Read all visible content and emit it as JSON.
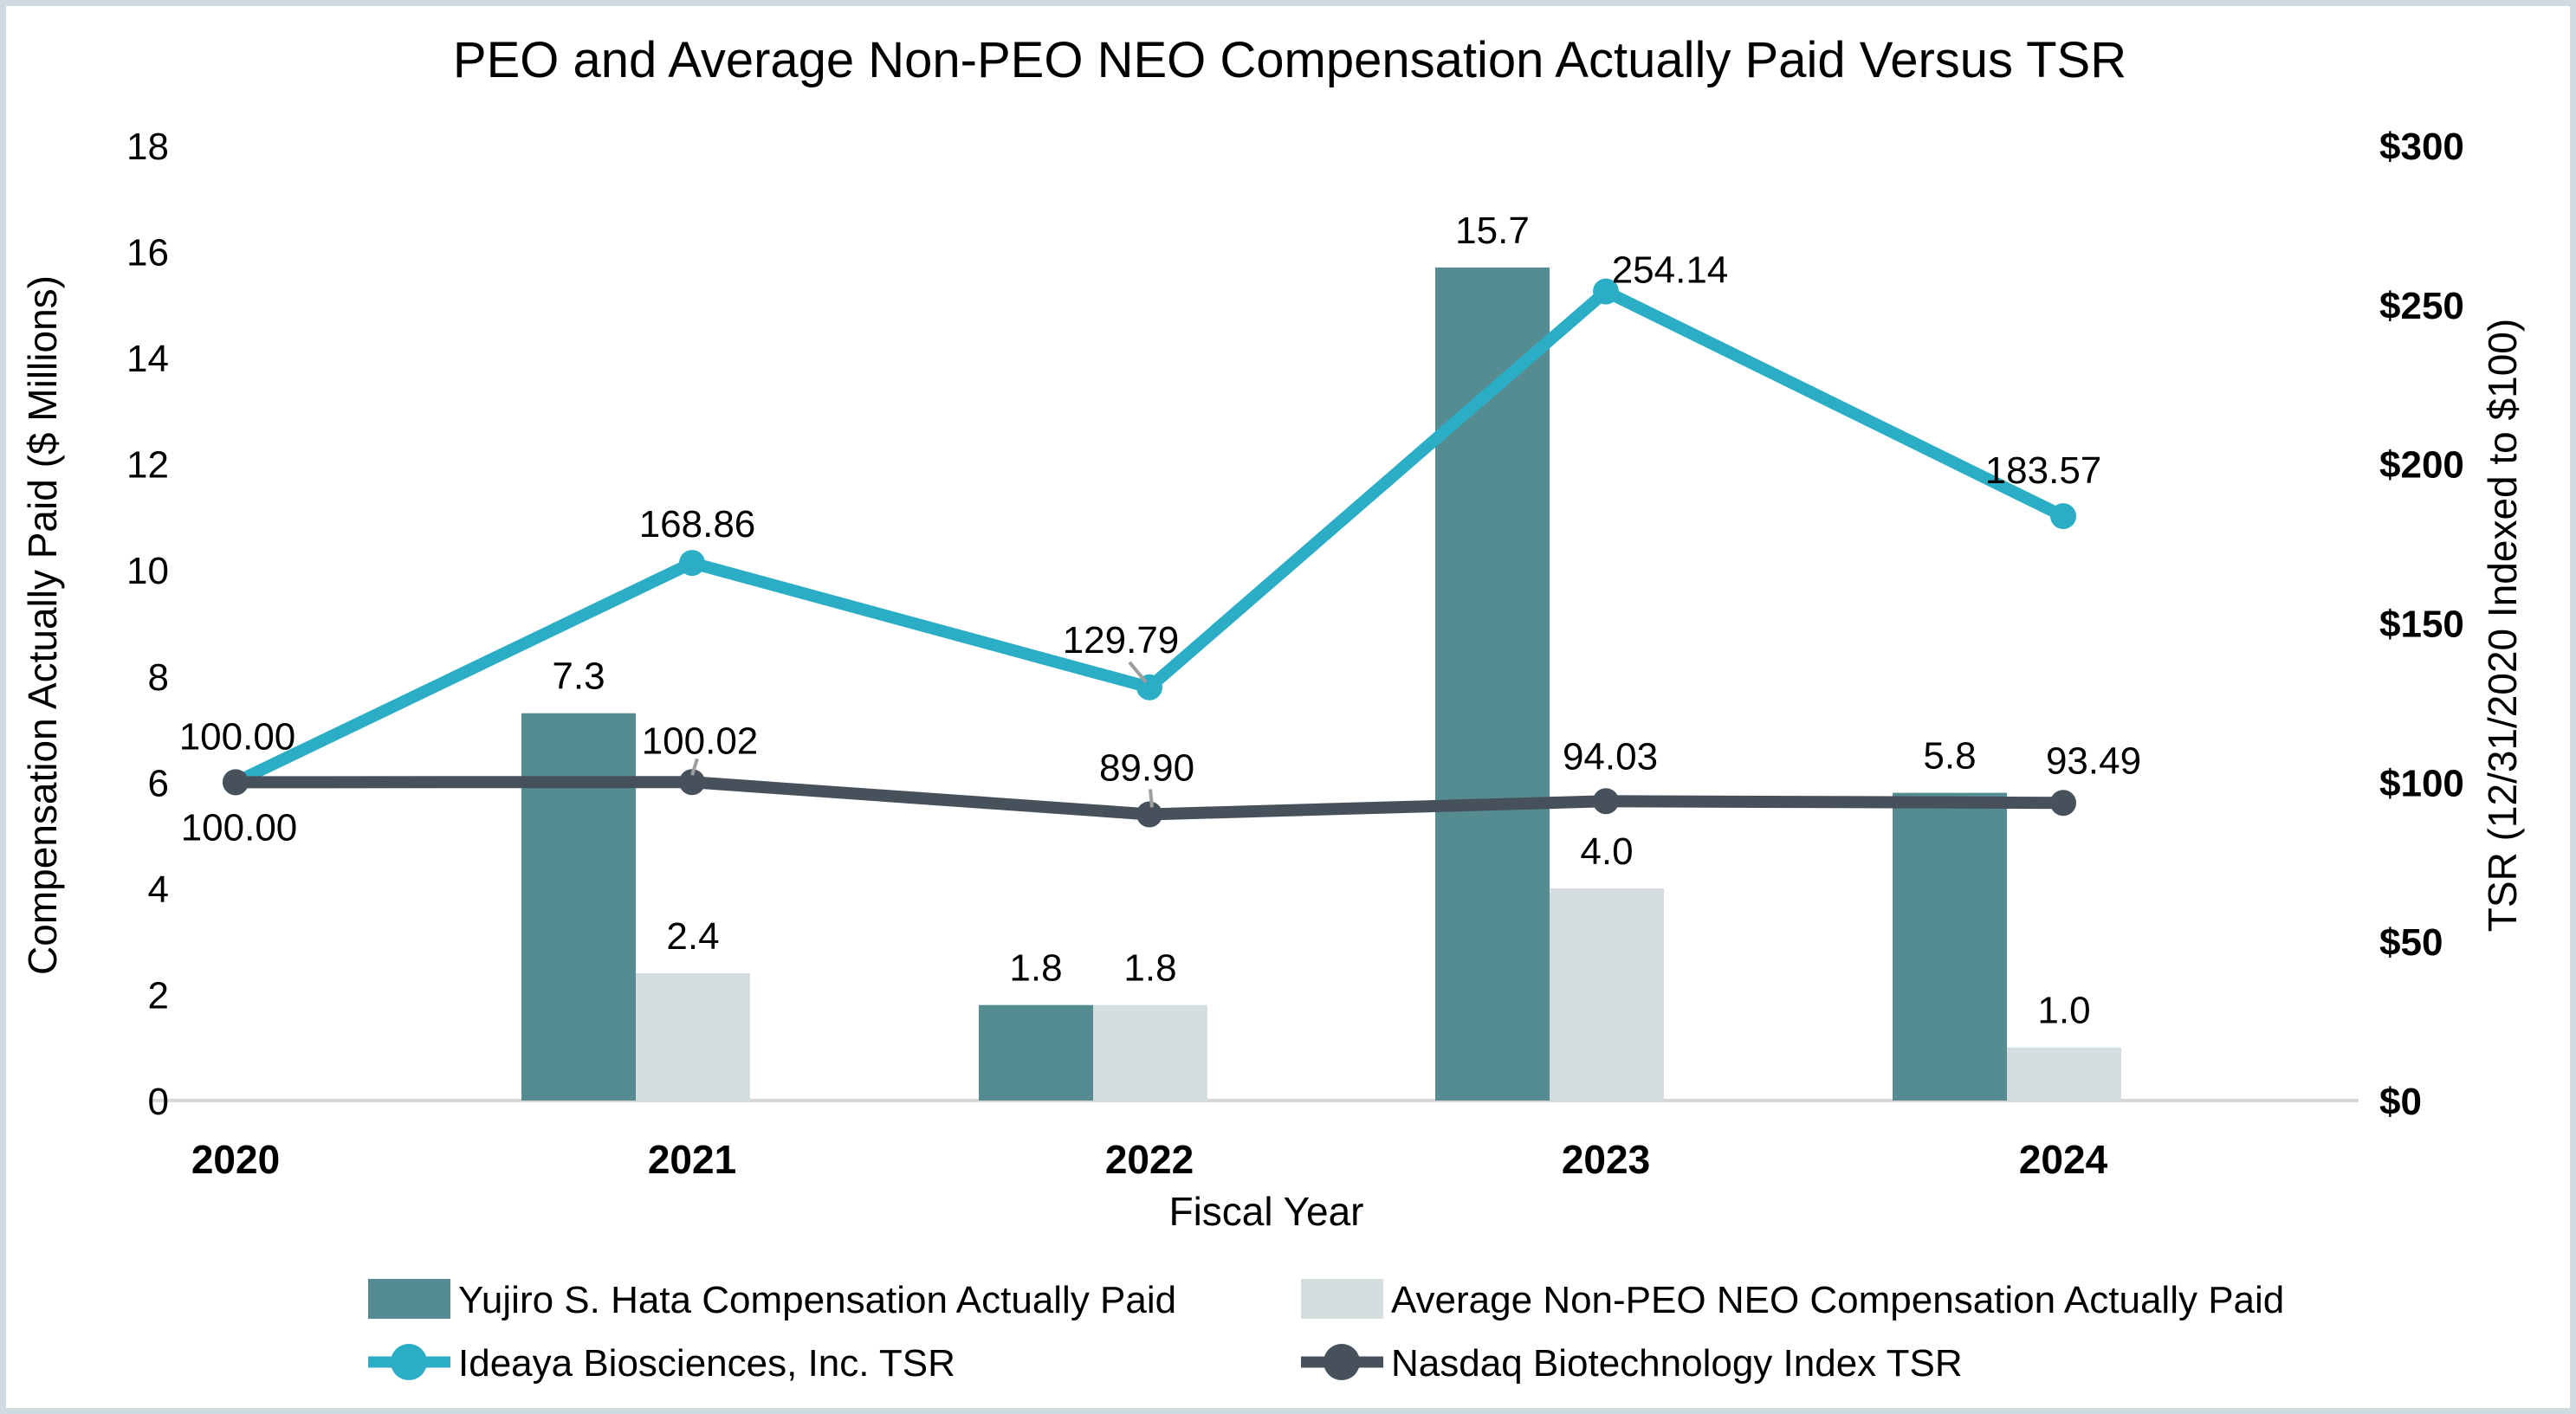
{
  "title": "PEO and Average Non-PEO NEO Compensation Actually Paid Versus TSR",
  "axes": {
    "left": {
      "label": "Compensation Actually Paid ($ Millions)",
      "ticks": [
        "0",
        "2",
        "4",
        "6",
        "8",
        "10",
        "12",
        "14",
        "16",
        "18"
      ],
      "range": [
        0,
        18
      ]
    },
    "right": {
      "label": "TSR (12/31/2020 Indexed to $100)",
      "ticks": [
        "$0",
        "$50",
        "$100",
        "$150",
        "$200",
        "$250",
        "$300"
      ],
      "range": [
        0,
        300
      ],
      "tick_color": "#2aa7be"
    },
    "x": {
      "label": "Fiscal Year",
      "ticks": [
        "2020",
        "2021",
        "2022",
        "2023",
        "2024"
      ]
    }
  },
  "chart_data": {
    "type": "combo bar+line dual-axis",
    "categories": [
      "2020",
      "2021",
      "2022",
      "2023",
      "2024"
    ],
    "series": [
      {
        "name": "Yujiro S. Hata Compensation Actually Paid",
        "type": "bar",
        "axis": "left",
        "color": "#558c92",
        "values": [
          null,
          7.3,
          1.8,
          15.7,
          5.8
        ],
        "labels": [
          "",
          "7.3",
          "1.8",
          "15.7",
          "5.8"
        ]
      },
      {
        "name": "Average Non-PEO NEO Compensation Actually Paid",
        "type": "bar",
        "axis": "left",
        "color": "#d4dee1",
        "values": [
          null,
          2.4,
          1.8,
          4.0,
          1.0
        ],
        "labels": [
          "",
          "2.4",
          "1.8",
          "4.0",
          "1.0"
        ]
      },
      {
        "name": "Ideaya Biosciences, Inc. TSR",
        "type": "line",
        "axis": "right",
        "color": "#2baec5",
        "values": [
          100.0,
          168.86,
          129.79,
          254.14,
          183.57
        ],
        "labels": [
          "100.00",
          "168.86",
          "129.79",
          "254.14",
          "183.57"
        ]
      },
      {
        "name": "Nasdaq Biotechnology Index TSR",
        "type": "line",
        "axis": "right",
        "color": "#47515c",
        "values": [
          100.0,
          100.02,
          89.9,
          94.03,
          93.49
        ],
        "labels": [
          "100.00",
          "100.02",
          "89.90",
          "94.03",
          "93.49"
        ]
      }
    ],
    "grid": false,
    "legend_position": "bottom",
    "axis_line_color": "#d8d8d8",
    "leader_line_color": "#9e9e9e"
  }
}
